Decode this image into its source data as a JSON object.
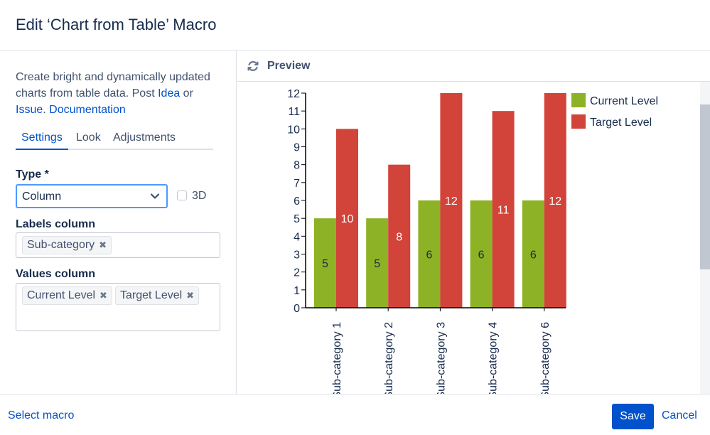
{
  "dialog": {
    "title": "Edit ‘Chart from Table’ Macro"
  },
  "description": {
    "text1": "Create bright and dynamically updated charts from table data. Post ",
    "link_idea": "Idea",
    "text2": " or ",
    "link_issue": "Issue",
    "text3": ". ",
    "link_docs": "Documentation"
  },
  "tabs": [
    {
      "label": "Settings",
      "active": true
    },
    {
      "label": "Look",
      "active": false
    },
    {
      "label": "Adjustments",
      "active": false
    }
  ],
  "type_field": {
    "label": "Type *",
    "value": "Column",
    "checkbox_label": "3D",
    "checkbox_checked": false
  },
  "labels_column": {
    "label": "Labels column",
    "tags": [
      "Sub-category"
    ]
  },
  "values_column": {
    "label": "Values column",
    "tags": [
      "Current Level",
      "Target Level"
    ]
  },
  "preview": {
    "label": "Preview"
  },
  "footer": {
    "select_macro": "Select macro",
    "save": "Save",
    "cancel": "Cancel"
  },
  "colors": {
    "accent": "#0052cc",
    "current": "#8db225",
    "target": "#d2433a"
  },
  "icons": [
    "refresh-icon",
    "chevron-down-icon",
    "close-icon"
  ],
  "chart_data": {
    "type": "bar",
    "categories": [
      "Sub-category 1",
      "Sub-category 2",
      "Sub-category 3",
      "Sub-category 4",
      "Sub-category 6"
    ],
    "series": [
      {
        "name": "Current Level",
        "values": [
          5,
          5,
          6,
          6,
          6
        ],
        "color": "#8db225"
      },
      {
        "name": "Target Level",
        "values": [
          10,
          8,
          12,
          11,
          12
        ],
        "color": "#d2433a"
      }
    ],
    "ylim": [
      0,
      12
    ],
    "yticks": [
      0,
      1,
      2,
      3,
      4,
      5,
      6,
      7,
      8,
      9,
      10,
      11,
      12
    ],
    "data_labels": true,
    "legend": "top-right",
    "title": "",
    "xlabel": "",
    "ylabel": ""
  }
}
